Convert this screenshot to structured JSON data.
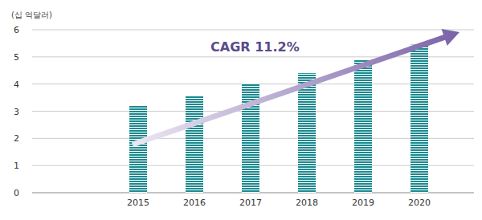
{
  "chart_data": {
    "type": "bar",
    "y_label": "(십 억달러)",
    "categories": [
      "2015",
      "2016",
      "2017",
      "2018",
      "2019",
      "2020"
    ],
    "values": [
      3.2,
      3.55,
      4.0,
      4.4,
      4.9,
      5.45
    ],
    "color": "#1b8a8f",
    "ylim": [
      0,
      6
    ],
    "yticks": [
      0,
      1,
      2,
      3,
      4,
      5,
      6
    ],
    "grid": true,
    "annotation": "CAGR 11.2%"
  }
}
